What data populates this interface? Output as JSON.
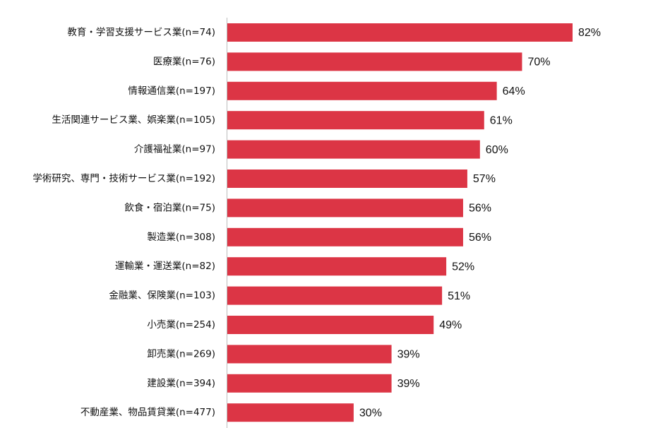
{
  "chart_data": {
    "type": "bar",
    "orientation": "horizontal",
    "color": "#dc3545",
    "categories": [
      "教育・学習支援サービス業(n=74)",
      "医療業(n=76)",
      "情報通信業(n=197)",
      "生活関連サービス業、娯楽業(n=105)",
      "介護福祉業(n=97)",
      "学術研究、専門・技術サービス業(n=192)",
      "飲食・宿泊業(n=75)",
      "製造業(n=308)",
      "運輸業・運送業(n=82)",
      "金融業、保険業(n=103)",
      "小売業(n=254)",
      "卸売業(n=269)",
      "建設業(n=394)",
      "不動産業、物品賃貸業(n=477)"
    ],
    "values": [
      82,
      70,
      64,
      61,
      60,
      57,
      56,
      56,
      52,
      51,
      49,
      39,
      39,
      30
    ],
    "value_labels": [
      "82%",
      "70%",
      "64%",
      "61%",
      "60%",
      "57%",
      "56%",
      "56%",
      "52%",
      "51%",
      "49%",
      "39%",
      "39%",
      "30%"
    ]
  }
}
